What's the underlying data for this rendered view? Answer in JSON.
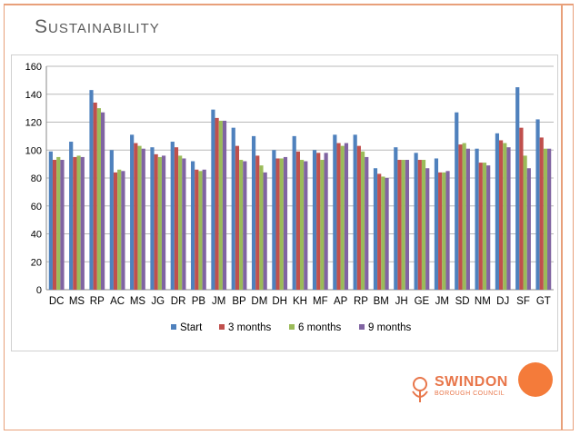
{
  "slide": {
    "title": "Sustainability"
  },
  "logo": {
    "name": "SWINDON",
    "subtitle": "BOROUGH COUNCIL"
  },
  "colors": {
    "accent": "#f47b3a",
    "frame": "#e8a07a",
    "series": [
      "#4f81bd",
      "#c0504d",
      "#9bbb59",
      "#8064a2"
    ]
  },
  "chart_data": {
    "type": "bar",
    "title": "",
    "xlabel": "",
    "ylabel": "",
    "ylim": [
      0,
      160
    ],
    "yticks": [
      0,
      20,
      40,
      60,
      80,
      100,
      120,
      140,
      160
    ],
    "grid": true,
    "legend": "bottom",
    "categories": [
      "DC",
      "MS",
      "RP",
      "AC",
      "MS",
      "JG",
      "DR",
      "PB",
      "JM",
      "BP",
      "DM",
      "DH",
      "KH",
      "MF",
      "AP",
      "RP",
      "BM",
      "JH",
      "GE",
      "JM",
      "SD",
      "NM",
      "DJ",
      "SF",
      "GT"
    ],
    "series": [
      {
        "name": "Start",
        "values": [
          99,
          106,
          143,
          100,
          111,
          102,
          106,
          92,
          129,
          116,
          110,
          100,
          110,
          100,
          111,
          111,
          87,
          102,
          98,
          94,
          127,
          101,
          112,
          145,
          122
        ]
      },
      {
        "name": "3 months",
        "values": [
          93,
          95,
          134,
          84,
          105,
          97,
          102,
          86,
          123,
          103,
          96,
          94,
          99,
          98,
          105,
          103,
          83,
          93,
          93,
          84,
          104,
          91,
          107,
          116,
          109
        ]
      },
      {
        "name": "6 months",
        "values": [
          95,
          96,
          130,
          86,
          103,
          95,
          96,
          85,
          121,
          93,
          89,
          94,
          93,
          93,
          103,
          99,
          81,
          93,
          93,
          84,
          105,
          91,
          105,
          96,
          101
        ]
      },
      {
        "name": "9 months",
        "values": [
          93,
          95,
          127,
          85,
          101,
          96,
          94,
          86,
          121,
          92,
          84,
          95,
          92,
          98,
          105,
          95,
          80,
          93,
          87,
          85,
          101,
          89,
          102,
          87,
          101
        ]
      }
    ]
  }
}
